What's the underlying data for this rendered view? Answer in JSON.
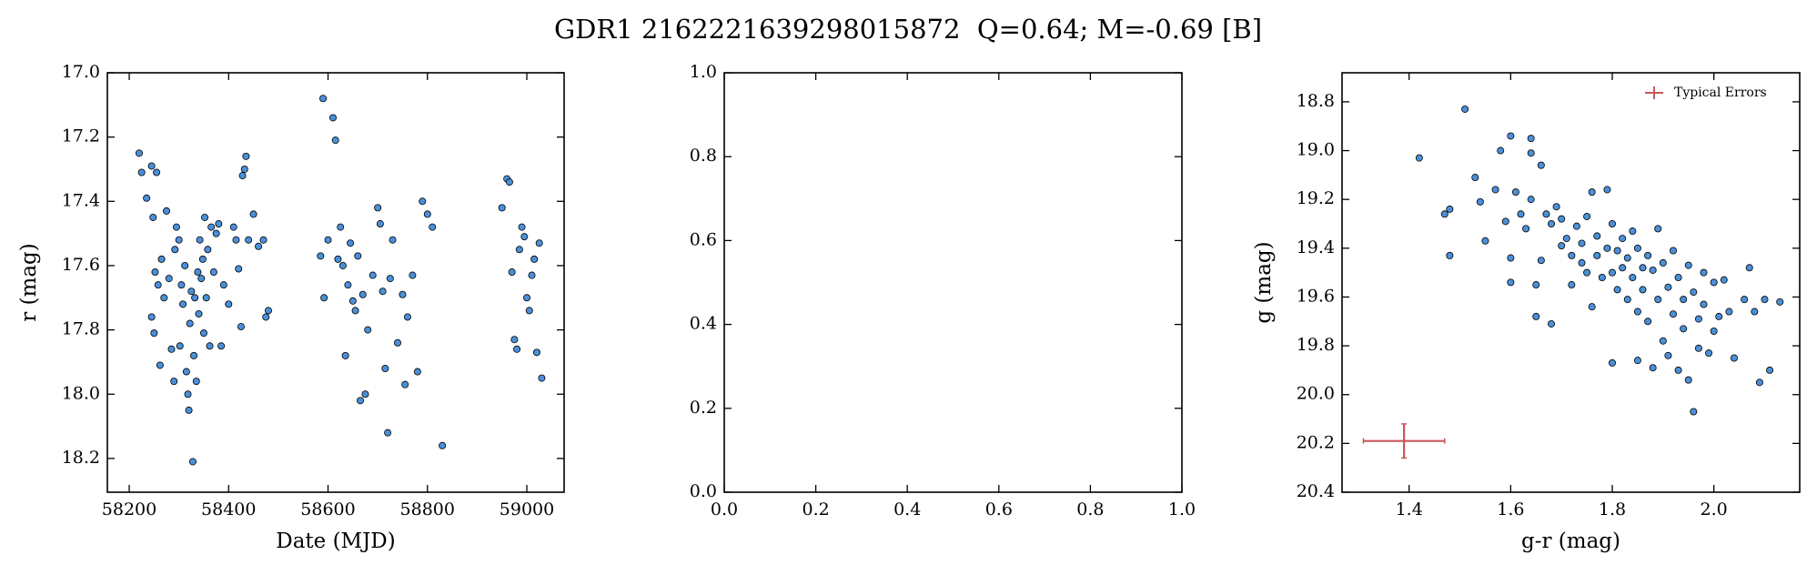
{
  "title": "GDR1 2162221639298015872  Q=0.64; M=-0.69 [B]",
  "chart_data": [
    {
      "type": "scatter",
      "xlabel": "Date (MJD)",
      "ylabel": "r (mag)",
      "xlim": [
        58156,
        59075
      ],
      "ylim": [
        17.0,
        18.305
      ],
      "invert_y": true,
      "xticks": [
        58200,
        58400,
        58600,
        58800,
        59000
      ],
      "yticks": [
        {
          "value": 17,
          "label": "17.0"
        },
        17.2,
        17.4,
        17.6,
        17.8,
        {
          "value": 18,
          "label": "18.0"
        },
        18.2
      ],
      "series": [
        {
          "color": "#4a90d9",
          "edgecolor": "#000000",
          "x": [
            58220,
            58225,
            58235,
            58245,
            58255,
            58248,
            58252,
            58245,
            58250,
            58262,
            58258,
            58265,
            58270,
            58275,
            58280,
            58285,
            58290,
            58292,
            58295,
            58300,
            58302,
            58305,
            58308,
            58312,
            58315,
            58318,
            58320,
            58322,
            58325,
            58328,
            58330,
            58332,
            58335,
            58338,
            58340,
            58342,
            58345,
            58348,
            58350,
            58352,
            58355,
            58358,
            58362,
            58365,
            58370,
            58375,
            58380,
            58385,
            58390,
            58400,
            58410,
            58415,
            58420,
            58425,
            58428,
            58432,
            58435,
            58440,
            58450,
            58460,
            58470,
            58475,
            58480,
            58585,
            58590,
            58592,
            58600,
            58610,
            58615,
            58620,
            58625,
            58630,
            58635,
            58640,
            58645,
            58650,
            58655,
            58660,
            58665,
            58670,
            58675,
            58680,
            58690,
            58700,
            58705,
            58710,
            58715,
            58720,
            58725,
            58730,
            58740,
            58750,
            58755,
            58760,
            58770,
            58780,
            58790,
            58800,
            58810,
            58830,
            58950,
            58960,
            58965,
            58970,
            58975,
            58980,
            58985,
            58990,
            58995,
            59000,
            59005,
            59010,
            59015,
            59020,
            59025,
            59030
          ],
          "y": [
            17.25,
            17.31,
            17.39,
            17.29,
            17.31,
            17.45,
            17.62,
            17.76,
            17.81,
            17.91,
            17.66,
            17.58,
            17.7,
            17.43,
            17.64,
            17.86,
            17.96,
            17.55,
            17.48,
            17.52,
            17.85,
            17.66,
            17.72,
            17.6,
            17.93,
            18.0,
            18.05,
            17.78,
            17.68,
            18.21,
            17.88,
            17.7,
            17.96,
            17.62,
            17.75,
            17.52,
            17.64,
            17.58,
            17.81,
            17.45,
            17.7,
            17.55,
            17.85,
            17.48,
            17.62,
            17.5,
            17.47,
            17.85,
            17.66,
            17.72,
            17.48,
            17.52,
            17.61,
            17.79,
            17.32,
            17.3,
            17.26,
            17.52,
            17.44,
            17.54,
            17.52,
            17.76,
            17.74,
            17.57,
            17.08,
            17.7,
            17.52,
            17.14,
            17.21,
            17.58,
            17.48,
            17.6,
            17.88,
            17.66,
            17.53,
            17.71,
            17.74,
            17.57,
            18.02,
            17.69,
            18.0,
            17.8,
            17.63,
            17.42,
            17.47,
            17.68,
            17.92,
            18.12,
            17.64,
            17.52,
            17.84,
            17.69,
            17.97,
            17.76,
            17.63,
            17.93,
            17.4,
            17.44,
            17.48,
            18.16,
            17.42,
            17.33,
            17.34,
            17.62,
            17.83,
            17.86,
            17.55,
            17.48,
            17.51,
            17.7,
            17.74,
            17.63,
            17.58,
            17.87,
            17.53,
            17.95
          ]
        }
      ]
    },
    {
      "type": "empty",
      "xlim": [
        0,
        1
      ],
      "ylim": [
        0,
        1
      ],
      "xticks": [
        {
          "value": 0,
          "label": "0.0"
        },
        0.2,
        0.4,
        0.6,
        0.8,
        {
          "value": 1,
          "label": "1.0"
        }
      ],
      "yticks": [
        {
          "value": 0,
          "label": "0.0"
        },
        0.2,
        0.4,
        0.6,
        0.8,
        {
          "value": 1,
          "label": "1.0"
        }
      ]
    },
    {
      "type": "scatter",
      "xlabel": "g-r (mag)",
      "ylabel": "g (mag)",
      "xlim": [
        1.268,
        2.169
      ],
      "ylim": [
        18.681,
        20.4
      ],
      "invert_y": true,
      "legend": "upper right",
      "xticks": [
        1.4,
        1.6,
        1.8,
        {
          "value": 2,
          "label": "2.0"
        }
      ],
      "yticks": [
        18.8,
        {
          "value": 19,
          "label": "19.0"
        },
        19.2,
        19.4,
        19.6,
        19.8,
        {
          "value": 20,
          "label": "20.0"
        },
        20.2,
        20.4
      ],
      "series": [
        {
          "color": "#4a90d9",
          "edgecolor": "#000000",
          "x": [
            1.42,
            1.47,
            1.48,
            1.48,
            1.51,
            1.53,
            1.54,
            1.55,
            1.57,
            1.58,
            1.59,
            1.6,
            1.6,
            1.6,
            1.61,
            1.62,
            1.63,
            1.64,
            1.64,
            1.64,
            1.65,
            1.65,
            1.66,
            1.66,
            1.67,
            1.68,
            1.68,
            1.69,
            1.7,
            1.7,
            1.71,
            1.72,
            1.72,
            1.73,
            1.74,
            1.74,
            1.75,
            1.75,
            1.76,
            1.76,
            1.77,
            1.77,
            1.78,
            1.79,
            1.79,
            1.8,
            1.8,
            1.8,
            1.81,
            1.81,
            1.82,
            1.82,
            1.83,
            1.83,
            1.84,
            1.84,
            1.85,
            1.85,
            1.85,
            1.86,
            1.86,
            1.87,
            1.87,
            1.88,
            1.88,
            1.89,
            1.89,
            1.9,
            1.9,
            1.91,
            1.91,
            1.92,
            1.92,
            1.93,
            1.93,
            1.94,
            1.94,
            1.95,
            1.95,
            1.96,
            1.96,
            1.97,
            1.97,
            1.98,
            1.98,
            1.99,
            2.0,
            2.0,
            2.01,
            2.02,
            2.03,
            2.04,
            2.06,
            2.07,
            2.08,
            2.09,
            2.1,
            2.11,
            2.13
          ],
          "y": [
            19.03,
            19.26,
            19.24,
            19.43,
            18.83,
            19.11,
            19.21,
            19.37,
            19.16,
            19.0,
            19.29,
            18.94,
            19.44,
            19.54,
            19.17,
            19.26,
            19.32,
            18.95,
            19.01,
            19.2,
            19.55,
            19.68,
            19.06,
            19.45,
            19.26,
            19.3,
            19.71,
            19.23,
            19.28,
            19.39,
            19.36,
            19.43,
            19.55,
            19.31,
            19.38,
            19.46,
            19.27,
            19.5,
            19.17,
            19.64,
            19.35,
            19.43,
            19.52,
            19.16,
            19.4,
            19.3,
            19.5,
            19.87,
            19.41,
            19.57,
            19.36,
            19.48,
            19.44,
            19.61,
            19.33,
            19.52,
            19.4,
            19.66,
            19.86,
            19.48,
            19.57,
            19.43,
            19.7,
            19.49,
            19.89,
            19.32,
            19.61,
            19.46,
            19.78,
            19.56,
            19.84,
            19.41,
            19.67,
            19.52,
            19.9,
            19.61,
            19.73,
            19.47,
            19.94,
            20.07,
            19.58,
            19.81,
            19.69,
            19.5,
            19.63,
            19.83,
            19.54,
            19.74,
            19.68,
            19.53,
            19.66,
            19.85,
            19.61,
            19.48,
            19.66,
            19.95,
            19.61,
            19.9,
            19.62
          ]
        },
        {
          "name": "Typical Errors",
          "color": "#c8575b",
          "x": [
            1.39
          ],
          "y": [
            20.19
          ],
          "xerr": [
            0.08
          ],
          "yerr": [
            0.07
          ]
        }
      ]
    }
  ]
}
